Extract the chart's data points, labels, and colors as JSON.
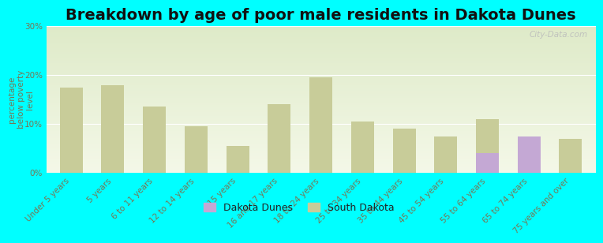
{
  "title": "Breakdown by age of poor male residents in Dakota Dunes",
  "ylabel": "percentage\nbelow poverty\nlevel",
  "categories": [
    "Under 5 years",
    "5 years",
    "6 to 11 years",
    "12 to 14 years",
    "15 years",
    "16 and 17 years",
    "18 to 24 years",
    "25 to 34 years",
    "35 to 44 years",
    "45 to 54 years",
    "55 to 64 years",
    "65 to 74 years",
    "75 years and over"
  ],
  "south_dakota": [
    17.5,
    18.0,
    13.5,
    9.5,
    5.5,
    14.0,
    19.5,
    10.5,
    9.0,
    7.5,
    11.0,
    7.5,
    7.0
  ],
  "dakota_dunes": [
    null,
    null,
    null,
    null,
    null,
    null,
    null,
    null,
    null,
    null,
    4.0,
    7.5,
    null
  ],
  "sd_color": "#c8cc99",
  "dd_color": "#c4a8d4",
  "bg_top": "#deeac8",
  "bg_bottom": "#f4f8e8",
  "outer_bg": "#00ffff",
  "ylim": [
    0,
    30
  ],
  "yticks": [
    0,
    10,
    20,
    30
  ],
  "ytick_labels": [
    "0%",
    "10%",
    "20%",
    "30%"
  ],
  "bar_width": 0.55,
  "legend_dd": "Dakota Dunes",
  "legend_sd": "South Dakota",
  "watermark": "City-Data.com",
  "title_fontsize": 14,
  "ylabel_fontsize": 7.5,
  "tick_fontsize": 7.5
}
